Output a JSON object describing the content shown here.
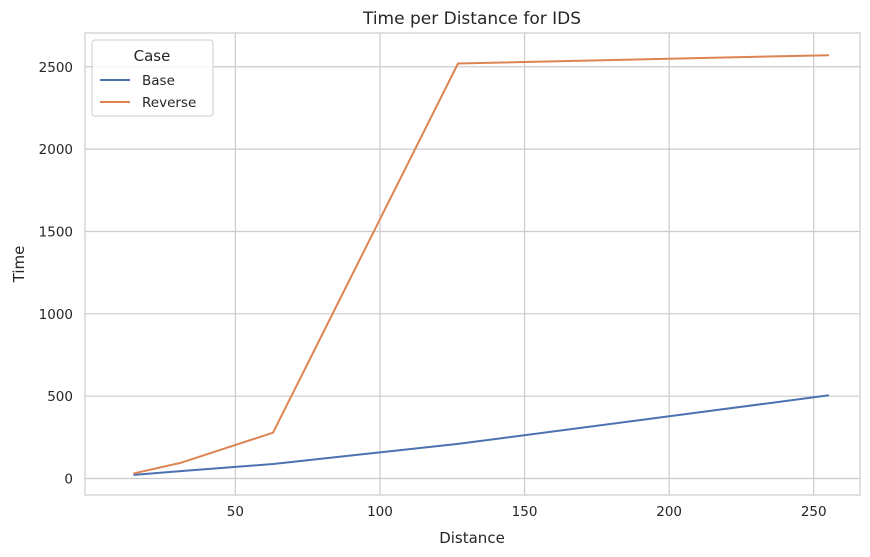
{
  "chart_data": {
    "type": "line",
    "title": "Time per Distance for IDS",
    "xlabel": "Distance",
    "ylabel": "Time",
    "xlim": [
      -2,
      266
    ],
    "ylim": [
      -100,
      2705
    ],
    "x_ticks": [
      50,
      100,
      150,
      200,
      250
    ],
    "y_ticks": [
      0,
      500,
      1000,
      1500,
      2000,
      2500
    ],
    "grid": true,
    "legend": {
      "title": "Case",
      "placement": "top-left"
    },
    "series": [
      {
        "name": "Base",
        "color": "#4c72b0",
        "points": [
          [
            15,
            22
          ],
          [
            31,
            45
          ],
          [
            63,
            88
          ],
          [
            127,
            210
          ],
          [
            255,
            505
          ]
        ]
      },
      {
        "name": "Reverse",
        "color": "#dd8452",
        "points": [
          [
            15,
            32
          ],
          [
            31,
            95
          ],
          [
            63,
            278
          ],
          [
            127,
            2520
          ],
          [
            255,
            2570
          ]
        ]
      }
    ]
  }
}
